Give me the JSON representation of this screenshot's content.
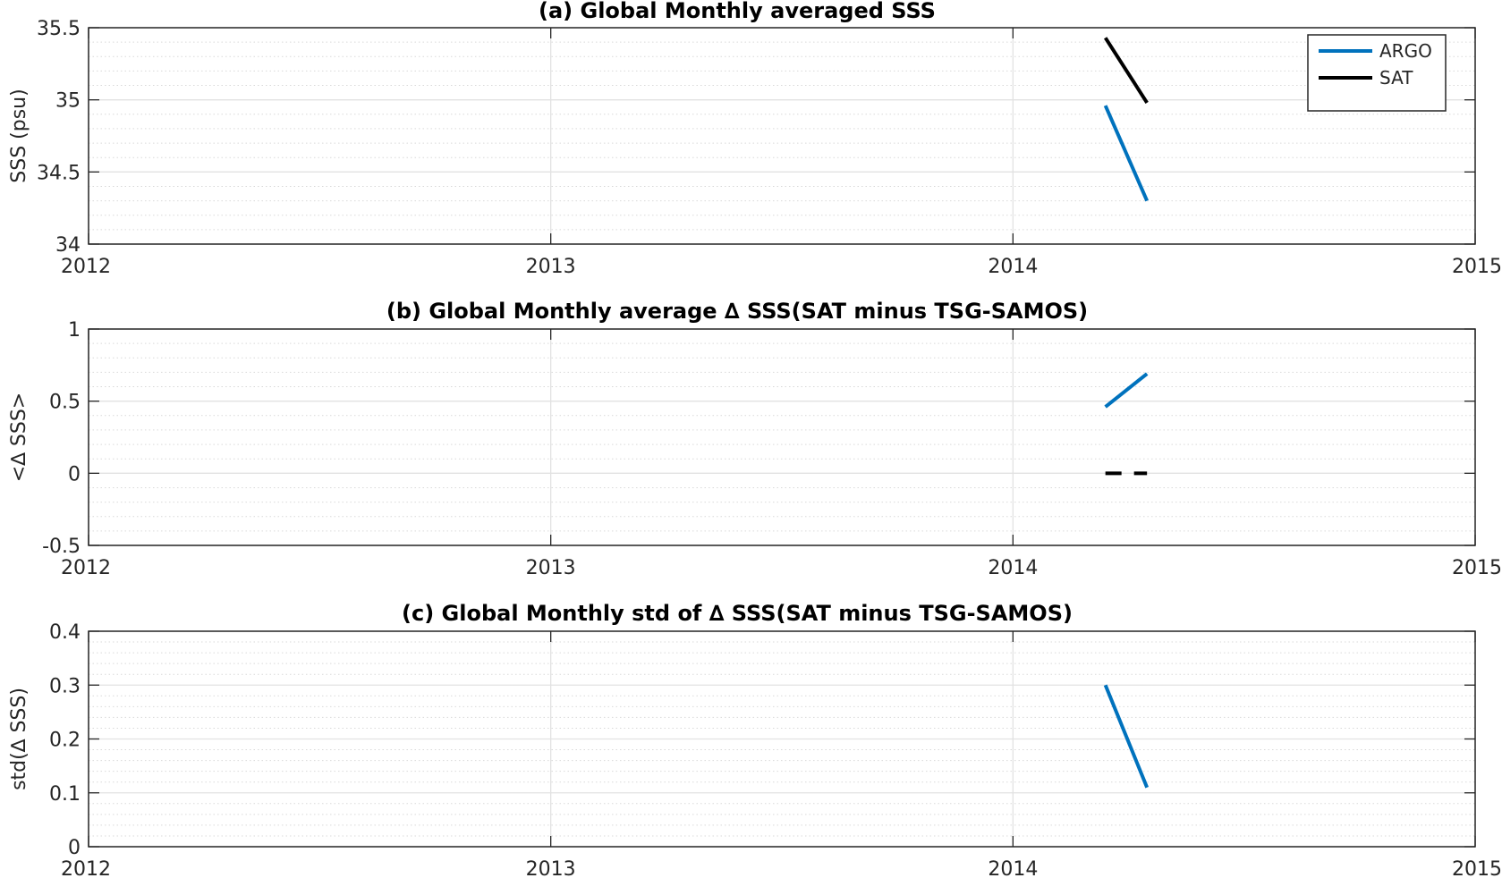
{
  "chart_data": [
    {
      "type": "line",
      "title": "(a) Global Monthly averaged SSS",
      "xlabel": "",
      "ylabel": "SSS (psu)",
      "xlim": [
        2012,
        2015
      ],
      "ylim": [
        34,
        35.5
      ],
      "x_ticks": [
        "2012",
        "2013",
        "2014",
        "2015"
      ],
      "y_ticks": [
        "34",
        "34.5",
        "35",
        "35.5"
      ],
      "grid": "on",
      "legend": "top-right",
      "series": [
        {
          "name": "ARGO",
          "color": "#0072BD",
          "style": "solid",
          "x": [
            2014.2,
            2014.29
          ],
          "y": [
            34.96,
            34.3
          ]
        },
        {
          "name": "SAT",
          "color": "#000000",
          "style": "solid",
          "x": [
            2014.2,
            2014.29
          ],
          "y": [
            35.43,
            34.98
          ]
        }
      ]
    },
    {
      "type": "line",
      "title": "(b) Global Monthly average ∆ SSS(SAT minus TSG-SAMOS)",
      "xlabel": "",
      "ylabel": "<∆ SSS>",
      "xlim": [
        2012,
        2015
      ],
      "ylim": [
        -0.5,
        1
      ],
      "x_ticks": [
        "2012",
        "2013",
        "2014",
        "2015"
      ],
      "y_ticks": [
        "-0.5",
        "0",
        "0.5",
        "1"
      ],
      "grid": "on",
      "series": [
        {
          "color": "#0072BD",
          "style": "solid",
          "x": [
            2014.2,
            2014.29
          ],
          "y": [
            0.46,
            0.69
          ]
        },
        {
          "color": "#000000",
          "style": "dashed",
          "x": [
            2014.2,
            2014.29
          ],
          "y": [
            0,
            0
          ]
        }
      ]
    },
    {
      "type": "line",
      "title": "(c) Global Monthly std of ∆ SSS(SAT minus TSG-SAMOS)",
      "xlabel": "",
      "ylabel": "std(∆ SSS)",
      "xlim": [
        2012,
        2015
      ],
      "ylim": [
        0,
        0.4
      ],
      "x_ticks": [
        "2012",
        "2013",
        "2014",
        "2015"
      ],
      "y_ticks": [
        "0",
        "0.1",
        "0.2",
        "0.3",
        "0.4"
      ],
      "grid": "on",
      "series": [
        {
          "color": "#0072BD",
          "style": "solid",
          "x": [
            2014.2,
            2014.29
          ],
          "y": [
            0.3,
            0.11
          ]
        }
      ]
    }
  ]
}
